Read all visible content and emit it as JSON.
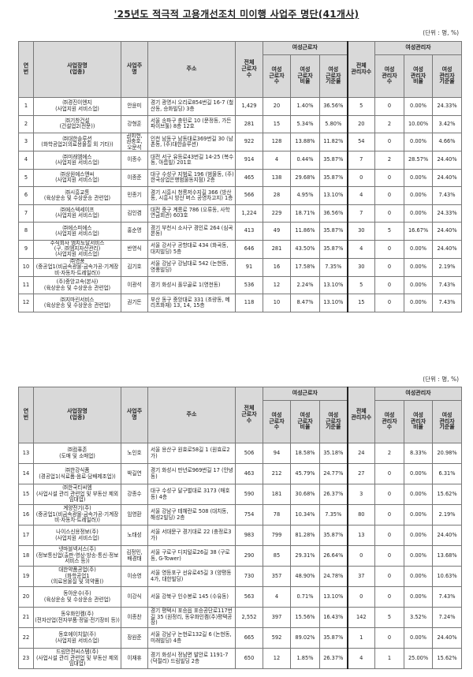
{
  "title": "'25년도 적극적 고용개선조치 미이행 사업주 명단(41개사)",
  "unit": "(단위 : 명, %)",
  "header": {
    "no": "연\n번",
    "company": "사업장명\n(업종)",
    "owner": "사업주\n명",
    "address": "주소",
    "total_workers": "전체\n근로자\n수",
    "female_workers_group": "여성근로자",
    "female_workers": "여성\n근로자\n수",
    "female_workers_ratio": "여성\n근로자\n비율",
    "female_workers_standard": "여성\n근로자\n기준율",
    "total_managers": "전체\n관리자수",
    "female_managers_group": "여성관리자",
    "female_managers": "여성\n관리자\n수",
    "female_managers_ratio": "여성\n관리자\n비율",
    "female_managers_standard": "여성\n관리자\n기준율"
  },
  "pages": [
    {
      "rows": [
        [
          "1",
          "㈜경진이엔지\n(사업지원 서비스업)",
          "안윤미",
          "경기 광명시 오리로854번길 16-7 (철산동, 승화빌딩) 3층",
          "1,429",
          "20",
          "1.40%",
          "36.56%",
          "5",
          "0",
          "0.00%",
          "24.33%"
        ],
        [
          "2",
          "㈜기창건설\n(건설업2(전문))",
          "강형훈",
          "서울 송파구 충민로 10 (문정동, 가든파이브툴) 8층 12호",
          "281",
          "15",
          "5.34%",
          "5.80%",
          "20",
          "2",
          "10.00%",
          "3.42%"
        ],
        [
          "3",
          "㈜대한솔루션\n(화학공업2(의료용물질 외 기타))",
          "권회현,\n권충호,\n오문석",
          "인천 남동구 남동대로369번길 30 (남촌동, (주)대한솔루션)",
          "922",
          "128",
          "13.88%",
          "11.82%",
          "54",
          "0",
          "0.00%",
          "4.66%"
        ],
        [
          "4",
          "㈜미래엠에스\n(사업지원 서비스업)",
          "이종수",
          "대전 서구 유등로43번길 14-25 (복수동, 아름빌) 201호",
          "914",
          "4",
          "0.44%",
          "35.87%",
          "7",
          "2",
          "28.57%",
          "24.40%"
        ],
        [
          "5",
          "㈜상원에스앤씨\n(사업지원 서비스업)",
          "이종준",
          "대구 수성구 지범로 196 (범물동, (주)한국상업은행범물동지점) 2층",
          "465",
          "138",
          "29.68%",
          "35.87%",
          "0",
          "0",
          "0.00%",
          "24.40%"
        ],
        [
          "6",
          "㈜시흥교통\n(육상운송 및 수상운송 관련업)",
          "민종기",
          "경기 시흥시 청룡저수지길 366 (방산동, 시흥시 방산 버스 공영차고지) 1층",
          "566",
          "28",
          "4.95%",
          "13.10%",
          "4",
          "0",
          "0.00%",
          "7.43%"
        ],
        [
          "7",
          "㈜에스텍세이프\n(사업지원 서비스업)",
          "김인겸",
          "대전 중구 계룡로 786 (오류동, 사학연금회관) 603호",
          "1,224",
          "229",
          "18.71%",
          "36.56%",
          "7",
          "0",
          "0.00%",
          "24.33%"
        ],
        [
          "8",
          "㈜에스피에스\n(사업지원 서비스업)",
          "홍순명",
          "경기 부천시 소사구 경인로 264 (심곡본동)",
          "413",
          "49",
          "11.86%",
          "35.87%",
          "30",
          "5",
          "16.67%",
          "24.40%"
        ],
        [
          "9",
          "주식회사 엠지토탈서비스\n(구. ㈜엠지자산관리)\n(사업지원 서비스업)",
          "반영식",
          "서울 강서구 공항대로 434 (화곡동, 대지빌딩) 5층",
          "646",
          "281",
          "43.50%",
          "35.87%",
          "4",
          "0",
          "0.00%",
          "24.40%"
        ],
        [
          "10",
          "㈜영풍\n(중공업1(비금속광물·금속가공·기계장비·자동차·트레일러))",
          "김기호",
          "서울 강남구 강남대로 542 (논현동, 영풍빌딩)",
          "91",
          "16",
          "17.58%",
          "7.35%",
          "30",
          "0",
          "0.00%",
          "2.19%"
        ],
        [
          "11",
          "(주)중앙고속(본사)\n(육상운송 및 수상운송 관련업)",
          "이광석",
          "경기 화성시 풀무골로 1(영천동)",
          "536",
          "12",
          "2.24%",
          "13.10%",
          "5",
          "0",
          "0.00%",
          "7.43%"
        ],
        [
          "12",
          "㈜지마린서비스\n(육상운송 및 수상운송 관련업)",
          "권기돈",
          "부산 동구 중앙대로 331 (초량동, 메리츠화재) 13, 14, 15층",
          "118",
          "10",
          "8.47%",
          "13.10%",
          "15",
          "0",
          "0.00%",
          "7.43%"
        ]
      ]
    },
    {
      "rows": [
        [
          "13",
          "㈜컴퓨존\n(도매 및 소매업)",
          "노인호",
          "서울 용산구 원효로58길 1 (원효로2가)",
          "506",
          "94",
          "18.58%",
          "35.18%",
          "24",
          "2",
          "8.33%",
          "20.98%"
        ],
        [
          "14",
          "㈜한강식품\n(경공업1(식료품·음료·담배제조업))",
          "박길연",
          "경기 화성시 만년로969번길 17 (안녕동)",
          "463",
          "212",
          "45.79%",
          "24.77%",
          "27",
          "0",
          "0.00%",
          "6.31%"
        ],
        [
          "15",
          "㈜한국티씨엠\n(사업시설 관리 관련업 및 부동산 제외 임대업)",
          "강종수",
          "대구 수성구 달구벌대로 3173 (매호동) 4층",
          "590",
          "181",
          "30.68%",
          "26.37%",
          "3",
          "0",
          "0.00%",
          "15.62%"
        ],
        [
          "16",
          "계양전기(주)\n(중공업1(비금속광물·금속가공·기계장비·자동차·트레일러))",
          "임영환",
          "서울 강남구 테헤란로 508 (대치동, 해성2빌딩) 2층",
          "754",
          "78",
          "10.34%",
          "7.35%",
          "80",
          "0",
          "0.00%",
          "2.19%"
        ],
        [
          "17",
          "나이스신용정보(주)\n(사업지원 서비스업)",
          "노태성",
          "서울 서대문구 경기대로 22 (충정로3가)",
          "983",
          "799",
          "81.28%",
          "35.87%",
          "13",
          "0",
          "0.00%",
          "24.40%"
        ],
        [
          "18",
          "넷마블넥서스(주)\n(정보통신업(출판·영상·방송·통신·정보서비스 등))",
          "김정민,\n배경태",
          "서울 구로구 디지털로26길 38 (구로동, G-Tower)",
          "290",
          "85",
          "29.31%",
          "26.64%",
          "0",
          "0",
          "0.00%",
          "13.68%"
        ],
        [
          "19",
          "대한약품공업(주)\n(화학공업1\n(의료용물질 및 의약품))",
          "이승영",
          "서울 영등포구 선유로45길 3 (양평동4가, 대한빌딩)",
          "730",
          "357",
          "48.90%",
          "24.78%",
          "37",
          "0",
          "0.00%",
          "10.63%"
        ],
        [
          "20",
          "동아운수(주)\n(육상운송 및 수상운송 관련업)",
          "이강식",
          "서울 강북구 인수봉로 145 (수유동)",
          "563",
          "4",
          "0.71%",
          "13.10%",
          "0",
          "0",
          "0.00%",
          "7.43%"
        ],
        [
          "21",
          "동우화인켐(주)\n(전자산업(전자부품·정밀·전기장비 등))",
          "이종찬",
          "경기 평택시 포승읍 포승공단로117번길 35 (원정리, 동우화인켐(주)평택공장)",
          "2,552",
          "397",
          "15.56%",
          "16.43%",
          "142",
          "5",
          "3.52%",
          "7.24%"
        ],
        [
          "22",
          "동호에이치알(주)\n(사업지원 서비스업)",
          "장원준",
          "서울 강남구 논현로132길 6 (논현동, 미래빌딩) 4층",
          "665",
          "592",
          "89.02%",
          "35.87%",
          "1",
          "0",
          "0.00%",
          "24.40%"
        ],
        [
          "23",
          "드림안전씨스템(주)\n(사업시설 관리 관련업 및 부동산 제외 임대업)",
          "이재휴",
          "경기 화성시 정남면 발안로 1191-7 (덕절리) 드림빌딩 2층",
          "650",
          "12",
          "1.85%",
          "26.37%",
          "4",
          "1",
          "25.00%",
          "15.62%"
        ]
      ]
    }
  ]
}
